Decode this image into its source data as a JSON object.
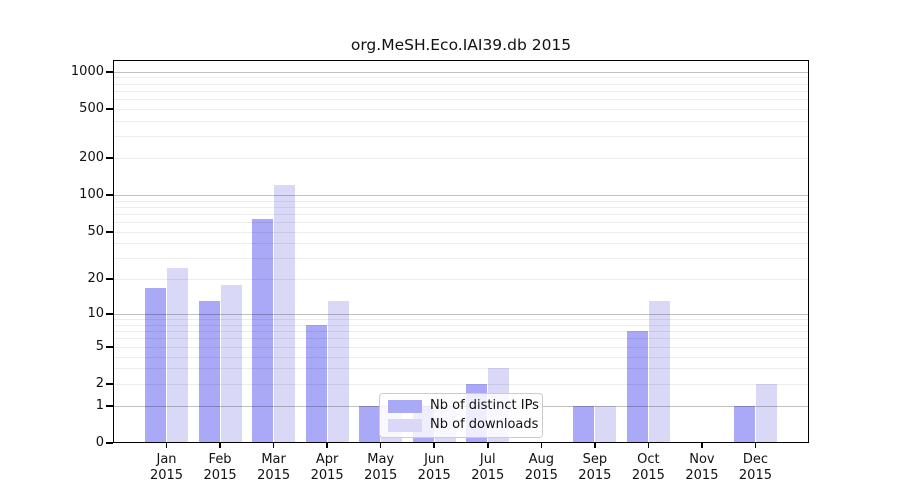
{
  "title": "org.MeSH.Eco.IAI39.db 2015",
  "legend": {
    "items": [
      {
        "label": "Nb of distinct IPs",
        "color": "#a9a9f7"
      },
      {
        "label": "Nb of downloads",
        "color": "#d9d9f7"
      }
    ]
  },
  "chart_data": {
    "type": "bar",
    "title": "org.MeSH.Eco.IAI39.db 2015",
    "categories": [
      "Jan",
      "Feb",
      "Mar",
      "Apr",
      "May",
      "Jun",
      "Jul",
      "Aug",
      "Sep",
      "Oct",
      "Nov",
      "Dec"
    ],
    "category_year": "2015",
    "series": [
      {
        "name": "Nb of distinct IPs",
        "color": "#a9a9f7",
        "values": [
          17,
          13,
          64,
          8,
          1,
          1,
          2,
          0,
          1,
          7,
          0,
          1
        ]
      },
      {
        "name": "Nb of downloads",
        "color": "#d9d9f7",
        "values": [
          25,
          18,
          120,
          13,
          1,
          1,
          3,
          0,
          1,
          13,
          0,
          2
        ]
      }
    ],
    "xlabel": "",
    "ylabel": "",
    "y_scale": "log10(1+x)",
    "y_ticks": [
      0,
      1,
      2,
      5,
      10,
      20,
      50,
      100,
      200,
      500,
      1000
    ],
    "y_minor_gridlines": [
      3,
      4,
      6,
      7,
      8,
      9,
      30,
      40,
      60,
      70,
      80,
      90,
      300,
      400,
      600,
      700,
      800,
      900
    ],
    "y_major_gridlines": [
      1,
      10,
      100,
      1000
    ],
    "ylim": [
      0,
      1243
    ],
    "grid": "on-horizontal",
    "legend_position": "lower-center-inside"
  }
}
